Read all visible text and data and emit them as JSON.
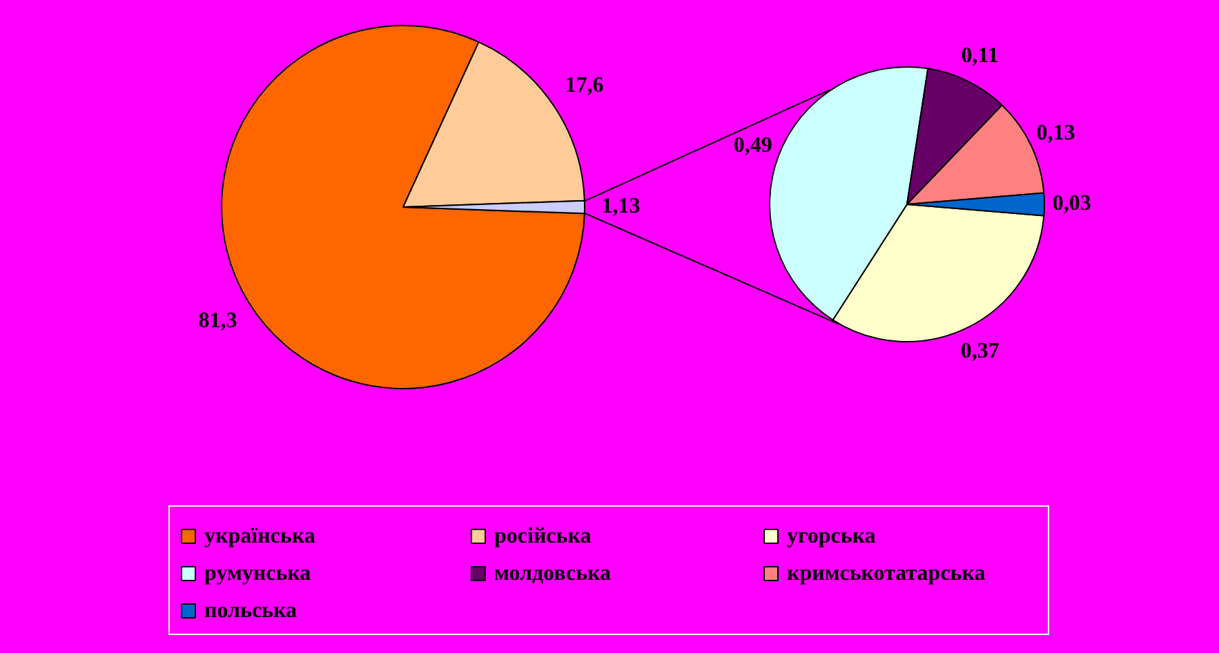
{
  "chart_data": [
    {
      "type": "pie",
      "categories": [
        "українська",
        "російська",
        null
      ],
      "values": [
        81.3,
        17.6,
        1.13
      ],
      "colors": [
        "#ff6600",
        "#ffcc99",
        "#ccccff"
      ],
      "value_labels": [
        "81,3",
        "17,6",
        "1,13"
      ],
      "legend": "bottom"
    },
    {
      "type": "pie",
      "categories": [
        "угорська",
        "румунська",
        "молдовська",
        "кримськотатарська",
        "польська"
      ],
      "values": [
        0.37,
        0.49,
        0.11,
        0.13,
        0.03
      ],
      "colors": [
        "#ffffcc",
        "#ccffff",
        "#660066",
        "#ff8080",
        "#0066cc"
      ],
      "value_labels": [
        "0,37",
        "0,49",
        "0,11",
        "0,13",
        "0,03"
      ],
      "legend": "bottom"
    }
  ]
}
